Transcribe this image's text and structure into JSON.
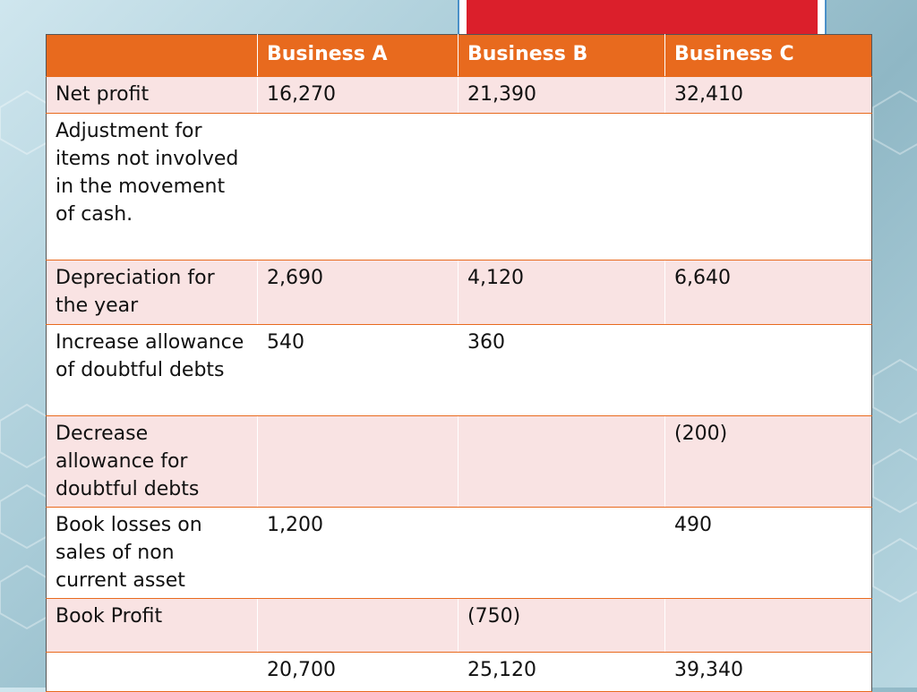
{
  "colors": {
    "header_bg": "#e86a1e",
    "header_text": "#ffffff",
    "row_odd_bg": "#f9e3e3",
    "row_even_bg": "#ffffff",
    "total_text": "#e0202b",
    "accent_tab": "#db1f2b"
  },
  "table": {
    "headers": [
      "",
      "Business A",
      "Business B",
      "Business C"
    ],
    "rows": [
      [
        "Net profit",
        "16,270",
        "21,390",
        "32,410"
      ],
      [
        "Adjustment for items  not involved in the movement of cash.",
        "",
        "",
        ""
      ],
      [
        "Depreciation for the year",
        "2,690",
        "4,120",
        "6,640"
      ],
      [
        "Increase allowance of doubtful debts",
        "540",
        "360",
        ""
      ],
      [
        "Decrease allowance for doubtful debts",
        "",
        "",
        "(200)"
      ],
      [
        "Book losses on sales of non current asset",
        "1,200",
        "",
        "490"
      ],
      [
        "Book Profit",
        "",
        "(750)",
        ""
      ],
      [
        "",
        "20,700",
        "25,120",
        " 39,340"
      ]
    ]
  }
}
